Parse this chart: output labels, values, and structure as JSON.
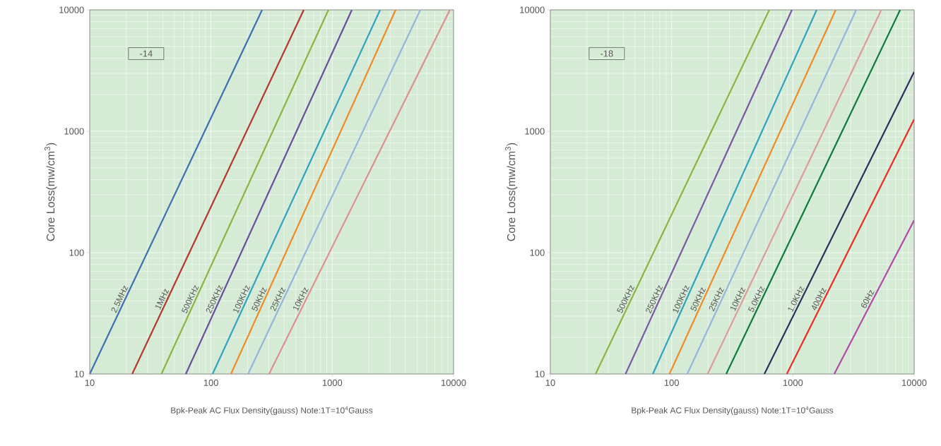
{
  "chart_data": [
    {
      "type": "line",
      "xlabel": "Bpk-Peak AC Flux Density(gauss) Note:1T=10$^{4}$Gauss",
      "ylabel": "Core Loss(mw/cm$^{3}$)",
      "annotations": [
        "-14"
      ],
      "log": "xy",
      "grid": true,
      "xlim": [
        10,
        10000
      ],
      "ylim": [
        10,
        10000
      ],
      "xticks": [
        10,
        100,
        1000,
        10000
      ],
      "yticks": [
        10,
        100,
        1000,
        10000
      ],
      "series": [
        {
          "name": "2.5MHz",
          "color": "#3d6eb4",
          "x": [
            10,
            264
          ],
          "values": [
            10,
            10000
          ]
        },
        {
          "name": "1MHz",
          "color": "#b5362e",
          "x": [
            22.4,
            582
          ],
          "values": [
            10,
            10000
          ]
        },
        {
          "name": "500KHz",
          "color": "#8ab33f",
          "x": [
            39,
            930
          ],
          "values": [
            10,
            10000
          ]
        },
        {
          "name": "250KHz",
          "color": "#6a4c9c",
          "x": [
            62,
            1450
          ],
          "values": [
            10,
            10000
          ]
        },
        {
          "name": "100KHz",
          "color": "#2ea3bf",
          "x": [
            103,
            2480
          ],
          "values": [
            10,
            10000
          ]
        },
        {
          "name": "50KHz",
          "color": "#f08a24",
          "x": [
            146,
            3330
          ],
          "values": [
            10,
            10000
          ]
        },
        {
          "name": "25KHz",
          "color": "#93b5dd",
          "x": [
            202,
            5320
          ],
          "values": [
            10,
            10000
          ]
        },
        {
          "name": "10KHz",
          "color": "#dd8f8f",
          "x": [
            301,
            9330
          ],
          "values": [
            10,
            10000
          ]
        }
      ]
    },
    {
      "type": "line",
      "xlabel": "Bpk-Peak AC Flux Density(gauss) Note:1T=10$^{4}$Gauss",
      "ylabel": "Core Loss(mw/cm$^{3}$)",
      "annotations": [
        "-18"
      ],
      "log": "xy",
      "grid": true,
      "xlim": [
        10,
        10000
      ],
      "ylim": [
        10,
        10000
      ],
      "xticks": [
        10,
        100,
        1000,
        10000
      ],
      "yticks": [
        10,
        100,
        1000,
        10000
      ],
      "series": [
        {
          "name": "500KHz",
          "color": "#8ab33f",
          "x": [
            23.6,
            639
          ],
          "values": [
            10,
            10000
          ]
        },
        {
          "name": "250KHz",
          "color": "#7b58a3",
          "x": [
            41.7,
            982
          ],
          "values": [
            10,
            10000
          ]
        },
        {
          "name": "100KHz",
          "color": "#2ea3bf",
          "x": [
            70,
            1570
          ],
          "values": [
            10,
            10000
          ]
        },
        {
          "name": "50KHz",
          "color": "#f08a24",
          "x": [
            96,
            2255
          ],
          "values": [
            10,
            10000
          ]
        },
        {
          "name": "25KHz",
          "color": "#93b5dd",
          "x": [
            134.5,
            3330
          ],
          "values": [
            10,
            10000
          ]
        },
        {
          "name": "10KHz",
          "color": "#dd9a9a",
          "x": [
            198,
            5360
          ],
          "values": [
            10,
            10000
          ]
        },
        {
          "name": "5.0KHz",
          "color": "#0b7a3a",
          "x": [
            282,
            7660
          ],
          "values": [
            10,
            10000
          ]
        },
        {
          "name": "1.0KHz",
          "color": "#2a2f5e",
          "x": [
            582,
            10000
          ],
          "values": [
            10,
            3090
          ]
        },
        {
          "name": "400Hz",
          "color": "#ee2a24",
          "x": [
            891,
            10000
          ],
          "values": [
            10,
            1256
          ]
        },
        {
          "name": "60Hz",
          "color": "#b448a8",
          "x": [
            2193,
            10000
          ],
          "values": [
            10,
            185
          ]
        }
      ]
    }
  ]
}
